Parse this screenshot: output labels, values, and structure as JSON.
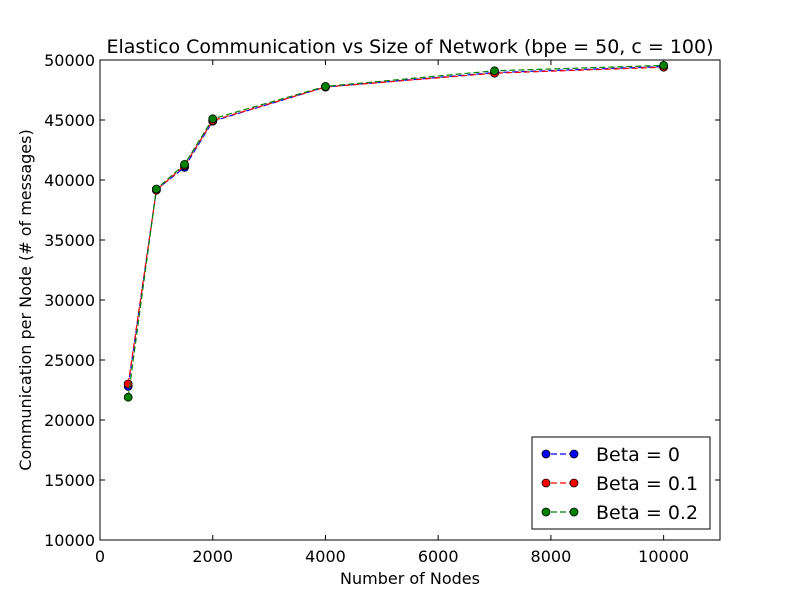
{
  "chart_data": {
    "type": "line",
    "title": "Elastico Communication vs Size of Network (bpe = 50, c = 100)",
    "xlabel": "Number of Nodes",
    "ylabel": "Communication per Node (# of messages)",
    "xlim": [
      0,
      11000
    ],
    "ylim": [
      10000,
      50000
    ],
    "xticks": [
      0,
      2000,
      4000,
      6000,
      8000,
      10000
    ],
    "yticks": [
      10000,
      15000,
      20000,
      25000,
      30000,
      35000,
      40000,
      45000,
      50000
    ],
    "x_tick_labels": [
      "0",
      "2000",
      "4000",
      "6000",
      "8000",
      "10000"
    ],
    "y_tick_labels": [
      "10000",
      "15000",
      "20000",
      "25000",
      "30000",
      "35000",
      "40000",
      "45000",
      "50000"
    ],
    "grid": false,
    "legend_position": "bottom-right",
    "x": [
      500,
      1000,
      1500,
      2000,
      4000,
      7000,
      10000
    ],
    "series": [
      {
        "name": "Beta = 0",
        "color": "#0000ff",
        "values": [
          22800,
          39200,
          41050,
          44900,
          47750,
          48950,
          49450
        ]
      },
      {
        "name": "Beta = 0.1",
        "color": "#ff0000",
        "values": [
          23000,
          39150,
          41200,
          44950,
          47750,
          48900,
          49400
        ]
      },
      {
        "name": "Beta = 0.2",
        "color": "#008000",
        "values": [
          21900,
          39250,
          41300,
          45100,
          47800,
          49100,
          49550
        ]
      }
    ]
  }
}
